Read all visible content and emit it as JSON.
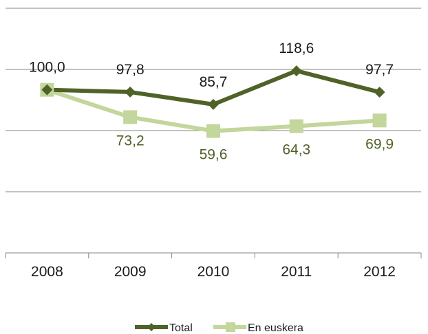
{
  "chart_data": {
    "type": "line",
    "categories": [
      "2008",
      "2009",
      "2010",
      "2011",
      "2012"
    ],
    "series": [
      {
        "name": "Total",
        "values": [
          100.0,
          97.8,
          85.7,
          118.6,
          97.7
        ],
        "labels": [
          "100,0",
          "97,8",
          "85,7",
          "118,6",
          "97,7"
        ],
        "color": "#4f6228",
        "marker": "diamond"
      },
      {
        "name": "En euskera",
        "values": [
          100.0,
          73.2,
          59.6,
          64.3,
          69.9
        ],
        "labels": [
          "",
          "73,2",
          "59,6",
          "64,3",
          "69,9"
        ],
        "color": "#c3d69b",
        "marker": "square"
      }
    ],
    "ylim": [
      -60,
      180
    ],
    "grid": true,
    "legend": "bottom"
  },
  "colors": {
    "gridline": "#868686",
    "axis": "#868686",
    "label_text": "#1a1a1a",
    "series2_label_text": "#4f6228"
  }
}
